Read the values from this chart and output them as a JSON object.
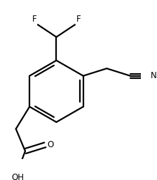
{
  "bg_color": "#ffffff",
  "line_color": "#000000",
  "line_width": 1.6,
  "font_size": 8.5,
  "atoms": {
    "F_label": "F",
    "N_label": "N",
    "O_label": "O",
    "OH_label": "OH"
  }
}
